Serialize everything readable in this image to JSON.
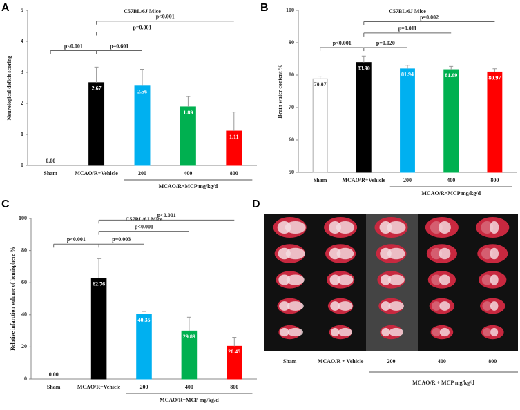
{
  "chart_data": [
    {
      "type": "bar",
      "panel": "A",
      "title": "C57BL/6J Mice",
      "y_label": "Neurological deficit scoring",
      "categories": [
        "Sham",
        "MCAO/R+Vehicle",
        "200",
        "400",
        "800"
      ],
      "values": [
        0,
        2.67,
        2.56,
        1.89,
        1.11
      ],
      "value_labels": [
        "0.00",
        "2.67",
        "2.56",
        "1.89",
        "1.11"
      ],
      "errors": [
        0,
        0.5,
        0.54,
        0.33,
        0.61
      ],
      "colors": [
        "#ffffff",
        "#000000",
        "#00b0f0",
        "#00b050",
        "#ff0000"
      ],
      "ylim": [
        0,
        5
      ],
      "yticks": [
        0,
        1,
        2,
        3,
        4,
        5
      ],
      "group_label": "MCAO/R+MCP mg/kg/d",
      "annotations": [
        "p<0.001",
        "p=0.601",
        "p=0.001",
        "p<0.001"
      ]
    },
    {
      "type": "bar",
      "panel": "B",
      "title": "C57BL/6J Mice",
      "y_label": "Brain water content %",
      "categories": [
        "Sham",
        "MCAO/R+Vehicle",
        "200",
        "400",
        "800"
      ],
      "values": [
        78.87,
        83.9,
        81.94,
        81.69,
        80.97
      ],
      "value_labels": [
        "78.87",
        "83.90",
        "81.94",
        "81.69",
        "80.97"
      ],
      "errors": [
        0.8,
        2,
        1.1,
        1,
        1
      ],
      "colors": [
        "#ffffff",
        "#000000",
        "#00b0f0",
        "#00b050",
        "#ff0000"
      ],
      "ylim": [
        50,
        100
      ],
      "yticks": [
        50,
        60,
        70,
        80,
        90,
        100
      ],
      "group_label": "MCAO/R+MCP mg/kg/d",
      "annotations": [
        "p<0.001",
        "p=0.020",
        "p=0.011",
        "p=0.002"
      ]
    },
    {
      "type": "bar",
      "panel": "C",
      "title": "C57BL/6J Mice",
      "y_label": "Relative infarction volume of hemisphere %",
      "categories": [
        "Sham",
        "MCAO/R+Vehicle",
        "200",
        "400",
        "800"
      ],
      "values": [
        0,
        62.76,
        40.35,
        29.89,
        20.45
      ],
      "value_labels": [
        "0.00",
        "62.76",
        "40.35",
        "29.89",
        "20.45"
      ],
      "errors": [
        0,
        12.2,
        1.7,
        8.6,
        5.5
      ],
      "colors": [
        "#ffffff",
        "#000000",
        "#00b0f0",
        "#00b050",
        "#ff0000"
      ],
      "ylim": [
        0,
        100
      ],
      "yticks": [
        0,
        20,
        40,
        60,
        80,
        100
      ],
      "group_label": "MCAO/R+MCP mg/kg/d",
      "annotations": [
        "p<0.001",
        "p=0.003",
        "p<0.001",
        "p<0.001"
      ]
    }
  ],
  "panel_d": {
    "panel": "D",
    "labels": [
      "Sham",
      "MCAO/R + Vehicle",
      "200",
      "400",
      "800"
    ],
    "group_label": "MCAO/R + MCP mg/kg/d"
  }
}
